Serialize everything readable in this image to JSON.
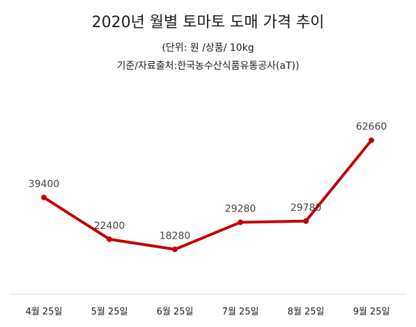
{
  "chart_data": {
    "type": "line",
    "title": "2020년 월별 토마토 도매 가격 추이",
    "subtitle": "(단위: 원 /상품/ 10kg",
    "source": "기준/자료출처:한국농수산식품유통공사(aT))",
    "categories": [
      "4월 25일",
      "5월 25일",
      "6월 25일",
      "7월 25일",
      "8월 25일",
      "9월 25일"
    ],
    "series": [
      {
        "values": [
          39400,
          22400,
          18280,
          29280,
          29780,
          62660
        ]
      }
    ],
    "data_labels": [
      "39400",
      "22400",
      "18280",
      "29280",
      "29780",
      "62660"
    ],
    "grid": false,
    "legend": "none",
    "line_color": "#c00000"
  }
}
